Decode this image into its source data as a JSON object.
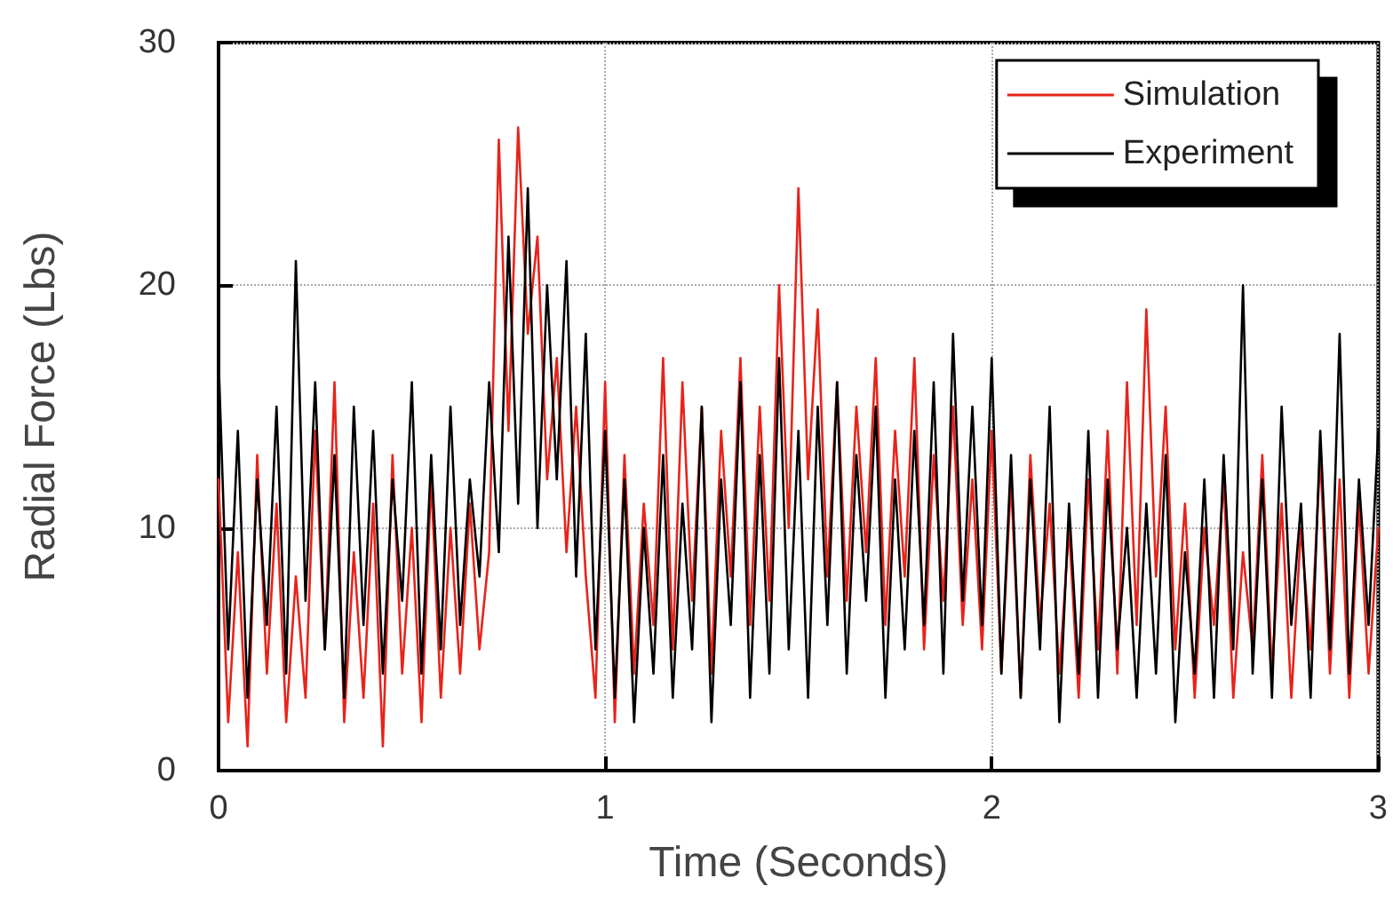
{
  "chart_data": {
    "type": "line",
    "xlabel": "Time (Seconds)",
    "ylabel": "Radial Force (Lbs)",
    "x": [
      0,
      0.025,
      0.05,
      0.075,
      0.1,
      0.125,
      0.15,
      0.175,
      0.2,
      0.225,
      0.25,
      0.275,
      0.3,
      0.325,
      0.35,
      0.375,
      0.4,
      0.425,
      0.45,
      0.475,
      0.5,
      0.525,
      0.55,
      0.575,
      0.6,
      0.625,
      0.65,
      0.675,
      0.7,
      0.725,
      0.75,
      0.775,
      0.8,
      0.825,
      0.85,
      0.875,
      0.9,
      0.925,
      0.95,
      0.975,
      1,
      1.025,
      1.05,
      1.075,
      1.1,
      1.125,
      1.15,
      1.175,
      1.2,
      1.225,
      1.25,
      1.275,
      1.3,
      1.325,
      1.35,
      1.375,
      1.4,
      1.425,
      1.45,
      1.475,
      1.5,
      1.525,
      1.55,
      1.575,
      1.6,
      1.625,
      1.65,
      1.675,
      1.7,
      1.725,
      1.75,
      1.775,
      1.8,
      1.825,
      1.85,
      1.875,
      1.9,
      1.925,
      1.95,
      1.975,
      2,
      2.025,
      2.05,
      2.075,
      2.1,
      2.125,
      2.15,
      2.175,
      2.2,
      2.225,
      2.25,
      2.275,
      2.3,
      2.325,
      2.35,
      2.375,
      2.4,
      2.425,
      2.45,
      2.475,
      2.5,
      2.525,
      2.55,
      2.575,
      2.6,
      2.625,
      2.65,
      2.675,
      2.7,
      2.725,
      2.75,
      2.775,
      2.8,
      2.825,
      2.85,
      2.875,
      2.9,
      2.925,
      2.95,
      2.975,
      3
    ],
    "series": [
      {
        "name": "Simulation",
        "color": "#e8231b",
        "values": [
          12,
          2,
          9,
          1,
          13,
          4,
          11,
          2,
          8,
          3,
          14,
          5,
          16,
          2,
          9,
          3,
          11,
          1,
          13,
          4,
          10,
          2,
          12,
          3,
          10,
          4,
          11,
          5,
          9,
          26,
          14,
          26.5,
          18,
          22,
          12,
          17,
          9,
          15,
          8,
          3,
          16,
          2,
          13,
          4,
          11,
          6,
          17,
          5,
          16,
          7,
          15,
          4,
          14,
          8,
          17,
          6,
          15,
          7,
          20,
          10,
          24,
          12,
          19,
          8,
          16,
          7,
          15,
          9,
          17,
          6,
          14,
          8,
          17,
          5,
          13,
          7,
          15,
          6,
          12,
          5,
          14,
          4,
          12,
          3,
          13,
          6,
          11,
          4,
          10,
          3,
          12,
          5,
          14,
          4,
          16,
          6,
          19,
          8,
          15,
          5,
          11,
          3,
          10,
          6,
          12,
          3,
          9,
          5,
          13,
          4,
          11,
          3,
          10,
          5,
          13,
          4,
          12,
          3,
          11,
          4,
          10
        ]
      },
      {
        "name": "Experiment",
        "color": "#000000",
        "values": [
          17,
          5,
          14,
          3,
          12,
          6,
          15,
          4,
          21,
          7,
          16,
          5,
          13,
          3,
          15,
          6,
          14,
          4,
          12,
          7,
          16,
          4,
          13,
          5,
          15,
          6,
          12,
          8,
          16,
          9,
          22,
          11,
          24,
          10,
          20,
          12,
          21,
          8,
          18,
          5,
          14,
          3,
          12,
          2,
          10,
          4,
          13,
          3,
          11,
          5,
          15,
          2,
          12,
          6,
          16,
          3,
          13,
          4,
          17,
          5,
          14,
          3,
          15,
          6,
          16,
          4,
          13,
          7,
          15,
          3,
          12,
          5,
          14,
          6,
          16,
          4,
          18,
          7,
          15,
          6,
          17,
          4,
          13,
          3,
          12,
          5,
          15,
          2,
          11,
          4,
          14,
          3,
          12,
          5,
          10,
          3,
          11,
          4,
          13,
          2,
          9,
          4,
          12,
          3,
          13,
          5,
          20,
          4,
          12,
          3,
          15,
          6,
          11,
          3,
          14,
          5,
          18,
          4,
          12,
          6,
          14
        ]
      }
    ],
    "xlim": [
      0,
      3
    ],
    "xticks": [
      0,
      1,
      2,
      3
    ],
    "ylim": [
      0,
      30
    ],
    "yticks": [
      0,
      10,
      20,
      30
    ],
    "grid": true,
    "legend": "top right",
    "marker": "none"
  }
}
